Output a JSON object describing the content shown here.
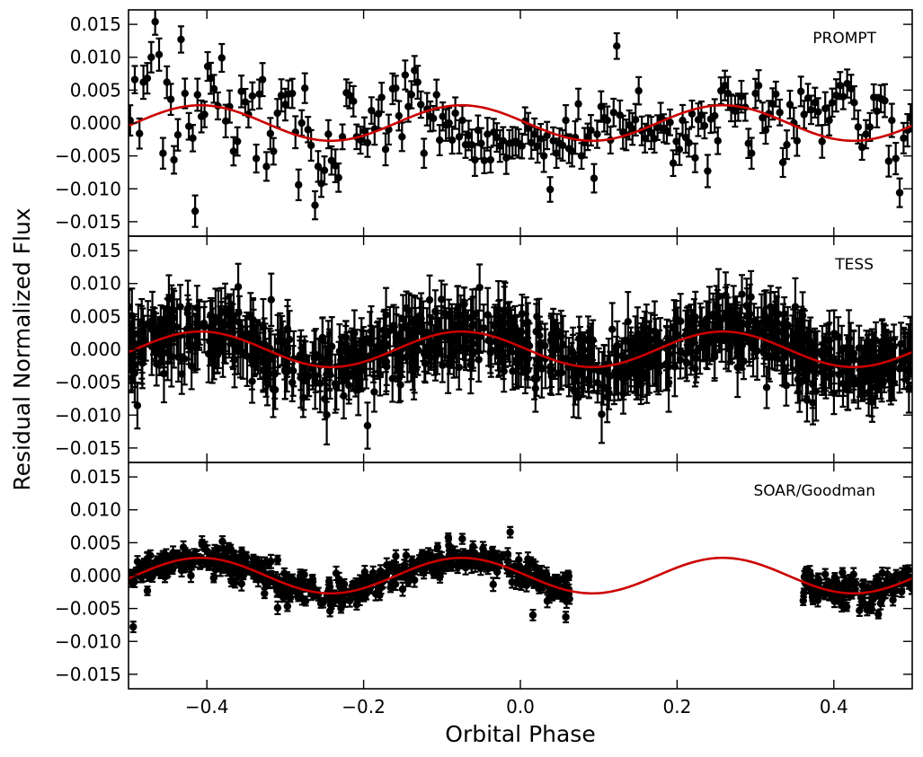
{
  "chart_data": {
    "type": "scatter",
    "ylabel": "Residual Normalized Flux",
    "xlabel": "Orbital Phase",
    "xlim": [
      -0.5,
      0.5
    ],
    "ylim": [
      -0.0172,
      0.0172
    ],
    "x_ticks": [
      -0.4,
      -0.2,
      0.0,
      0.2,
      0.4
    ],
    "x_tick_labels": [
      "−0.4",
      "−0.2",
      "0.0",
      "0.2",
      "0.4"
    ],
    "y_ticks": [
      -0.015,
      -0.01,
      -0.005,
      0.0,
      0.005,
      0.01,
      0.015
    ],
    "y_tick_labels": [
      "−0.015",
      "−0.010",
      "−0.005",
      "0.000",
      "0.005",
      "0.010",
      "0.015"
    ],
    "model": {
      "name": "sinusoid fit",
      "color": "#cc0000",
      "amplitude": 0.0027,
      "phase_of_maximum": -0.075,
      "cycles_per_unit_phase": 3
    },
    "marker_color": "#000000",
    "panels": [
      {
        "label": "PROMPT",
        "error_typical": 0.0022,
        "points": [
          [
            -0.498,
            0.0004
          ],
          [
            -0.492,
            0.0066
          ],
          [
            -0.486,
            -0.0016
          ],
          [
            -0.481,
            0.0062
          ],
          [
            -0.476,
            0.0068
          ],
          [
            -0.471,
            0.01
          ],
          [
            -0.466,
            0.0154
          ],
          [
            -0.461,
            0.0104
          ],
          [
            -0.456,
            -0.0046
          ],
          [
            -0.451,
            0.0062
          ],
          [
            -0.446,
            0.0036
          ],
          [
            -0.442,
            -0.0056
          ],
          [
            -0.437,
            -0.0018
          ],
          [
            -0.433,
            0.0127
          ],
          [
            -0.428,
            0.0045
          ],
          [
            -0.423,
            -0.0005
          ],
          [
            -0.418,
            -0.0023
          ],
          [
            -0.415,
            -0.0134
          ],
          [
            -0.412,
            0.0043
          ],
          [
            -0.407,
            0.001
          ],
          [
            -0.403,
            0.0013
          ],
          [
            -0.399,
            0.0086
          ],
          [
            -0.395,
            0.0068
          ],
          [
            -0.391,
            0.0052
          ],
          [
            -0.386,
            0.0026
          ],
          [
            -0.381,
            0.0099
          ],
          [
            -0.376,
            0.0003
          ],
          [
            -0.371,
            0.0025
          ],
          [
            -0.366,
            -0.0043
          ],
          [
            -0.361,
            -0.0028
          ],
          [
            -0.356,
            0.0048
          ],
          [
            -0.351,
            0.0032
          ],
          [
            -0.347,
            0.0013
          ],
          [
            -0.342,
            0.0041
          ],
          [
            -0.337,
            -0.0054
          ],
          [
            -0.333,
            0.0044
          ],
          [
            -0.329,
            0.0066
          ],
          [
            -0.324,
            -0.0066
          ],
          [
            -0.319,
            -0.0016
          ],
          [
            -0.315,
            -0.0043
          ],
          [
            -0.31,
            0.0015
          ],
          [
            -0.305,
            0.0042
          ],
          [
            -0.3,
            0.0028
          ],
          [
            -0.296,
            0.0044
          ],
          [
            -0.291,
            0.0045
          ],
          [
            -0.287,
            -0.0014
          ],
          [
            -0.283,
            -0.0094
          ],
          [
            -0.279,
            0.0
          ],
          [
            -0.275,
            0.0053
          ],
          [
            -0.271,
            -0.001
          ],
          [
            -0.267,
            -0.0034
          ],
          [
            -0.262,
            -0.0125
          ],
          [
            -0.258,
            -0.0066
          ],
          [
            -0.254,
            -0.0092
          ],
          [
            -0.25,
            -0.0072
          ],
          [
            -0.245,
            -0.0017
          ],
          [
            -0.241,
            -0.0057
          ],
          [
            -0.236,
            -0.0065
          ],
          [
            -0.232,
            -0.0083
          ],
          [
            -0.227,
            -0.0021
          ],
          [
            -0.222,
            0.0046
          ],
          [
            -0.218,
            0.0042
          ],
          [
            -0.213,
            0.0033
          ],
          [
            -0.209,
            -0.0021
          ],
          [
            -0.204,
            -0.0026
          ],
          [
            -0.199,
            -0.0012
          ],
          [
            -0.195,
            -0.003
          ],
          [
            -0.19,
            0.0019
          ],
          [
            -0.186,
            -0.0009
          ],
          [
            -0.181,
            0.0014
          ],
          [
            -0.177,
            0.0039
          ],
          [
            -0.172,
            -0.004
          ],
          [
            -0.168,
            -0.001
          ],
          [
            -0.163,
            0.0052
          ],
          [
            -0.159,
            0.0053
          ],
          [
            -0.155,
            0.0011
          ],
          [
            -0.151,
            -0.0021
          ],
          [
            -0.147,
            0.0073
          ],
          [
            -0.143,
            0.0025
          ],
          [
            -0.139,
            0.0043
          ],
          [
            -0.135,
            0.008
          ],
          [
            -0.131,
            0.0062
          ],
          [
            -0.127,
            0.0028
          ],
          [
            -0.123,
            -0.0046
          ],
          [
            -0.119,
            0.0021
          ],
          [
            -0.115,
            0.001
          ],
          [
            -0.111,
            0.0007
          ],
          [
            -0.107,
            0.0043
          ],
          [
            -0.103,
            -0.0026
          ],
          [
            -0.099,
            0.001
          ],
          [
            -0.095,
            -0.0003
          ],
          [
            -0.091,
            0.0
          ],
          [
            -0.087,
            -0.0026
          ],
          [
            -0.083,
            0.0015
          ],
          [
            -0.078,
            -0.0021
          ],
          [
            -0.074,
            0.0004
          ],
          [
            -0.07,
            -0.0033
          ],
          [
            -0.066,
            -0.0019
          ],
          [
            -0.062,
            -0.0033
          ],
          [
            -0.058,
            -0.0056
          ],
          [
            -0.054,
            -0.0011
          ],
          [
            -0.05,
            -0.0031
          ],
          [
            -0.046,
            -0.0057
          ],
          [
            -0.042,
            -0.0017
          ],
          [
            -0.038,
            -0.0056
          ],
          [
            -0.034,
            -0.0014
          ],
          [
            -0.03,
            -0.0022
          ],
          [
            -0.026,
            -0.0035
          ],
          [
            -0.022,
            -0.0027
          ],
          [
            -0.018,
            -0.0053
          ],
          [
            -0.014,
            -0.0031
          ],
          [
            -0.01,
            -0.003
          ],
          [
            -0.006,
            -0.0028
          ],
          [
            -0.002,
            -0.0031
          ],
          [
            0.002,
            -0.0035
          ],
          [
            0.006,
            0.0003
          ],
          [
            0.01,
            -0.0008
          ],
          [
            0.014,
            -0.003
          ],
          [
            0.018,
            -0.0017
          ],
          [
            0.022,
            -0.0035
          ],
          [
            0.026,
            -0.0024
          ],
          [
            0.03,
            -0.005
          ],
          [
            0.034,
            -0.0019
          ],
          [
            0.038,
            -0.0101
          ],
          [
            0.042,
            -0.0027
          ],
          [
            0.046,
            -0.0046
          ],
          [
            0.05,
            -0.0031
          ],
          [
            0.054,
            -0.0034
          ],
          [
            0.058,
            0.0004
          ],
          [
            0.062,
            -0.0039
          ],
          [
            0.066,
            -0.0043
          ],
          [
            0.07,
            -0.0022
          ],
          [
            0.074,
            0.0029
          ],
          [
            0.078,
            -0.005
          ],
          [
            0.082,
            -0.003
          ],
          [
            0.086,
            -0.0021
          ],
          [
            0.09,
            -0.0011
          ],
          [
            0.094,
            -0.0084
          ],
          [
            0.098,
            -0.0017
          ],
          [
            0.103,
            0.0025
          ],
          [
            0.107,
            0.0008
          ],
          [
            0.111,
            0.0004
          ],
          [
            0.115,
            -0.0026
          ],
          [
            0.119,
            0.0016
          ],
          [
            0.123,
            0.0117
          ],
          [
            0.127,
            0.0012
          ],
          [
            0.131,
            -0.0014
          ],
          [
            0.135,
            -0.0018
          ],
          [
            0.139,
            -0.0003
          ],
          [
            0.143,
            -0.0009
          ],
          [
            0.147,
            0.0005
          ],
          [
            0.151,
            0.0049
          ],
          [
            0.155,
            -0.0012
          ],
          [
            0.159,
            -0.0023
          ],
          [
            0.163,
            -0.0008
          ],
          [
            0.167,
            -0.0015
          ],
          [
            0.171,
            -0.0024
          ],
          [
            0.175,
            -0.0007
          ],
          [
            0.179,
            0.0008
          ],
          [
            0.183,
            -0.0008
          ],
          [
            0.187,
            -0.0012
          ],
          [
            0.191,
            0.0001
          ],
          [
            0.195,
            -0.0061
          ],
          [
            0.199,
            -0.0028
          ],
          [
            0.203,
            -0.004
          ],
          [
            0.207,
            0.0004
          ],
          [
            0.211,
            -0.0022
          ],
          [
            0.215,
            -0.003
          ],
          [
            0.219,
            0.0014
          ],
          [
            0.223,
            -0.0053
          ],
          [
            0.227,
            0.0005
          ],
          [
            0.231,
            0.0012
          ],
          [
            0.235,
            -0.0004
          ],
          [
            0.239,
            -0.0073
          ],
          [
            0.243,
            0.0006
          ],
          [
            0.248,
            0.0011
          ],
          [
            0.252,
            -0.0027
          ],
          [
            0.256,
            0.0049
          ],
          [
            0.261,
            0.0057
          ],
          [
            0.265,
            0.0045
          ],
          [
            0.269,
            0.0023
          ],
          [
            0.274,
            0.0018
          ],
          [
            0.278,
            0.0024
          ],
          [
            0.282,
            0.004
          ],
          [
            0.287,
            0.0024
          ],
          [
            0.291,
            -0.0031
          ],
          [
            0.295,
            -0.0046
          ],
          [
            0.3,
            0.0045
          ],
          [
            0.304,
            0.0057
          ],
          [
            0.309,
            0.0008
          ],
          [
            0.313,
            -0.0011
          ],
          [
            0.317,
            0.0014
          ],
          [
            0.322,
            0.0029
          ],
          [
            0.326,
            0.0044
          ],
          [
            0.331,
            0.0016
          ],
          [
            0.335,
            -0.006
          ],
          [
            0.34,
            -0.0033
          ],
          [
            0.344,
            0.0028
          ],
          [
            0.349,
            0.0
          ],
          [
            0.353,
            -0.0027
          ],
          [
            0.358,
            0.0048
          ],
          [
            0.362,
            0.0013
          ],
          [
            0.367,
            0.0038
          ],
          [
            0.371,
            0.002
          ],
          [
            0.376,
            0.0031
          ],
          [
            0.38,
            0.0017
          ],
          [
            0.385,
            -0.0028
          ],
          [
            0.389,
            0.0022
          ],
          [
            0.394,
            0.0004
          ],
          [
            0.398,
            0.0031
          ],
          [
            0.403,
            0.0042
          ],
          [
            0.408,
            0.0057
          ],
          [
            0.412,
            0.004
          ],
          [
            0.417,
            0.006
          ],
          [
            0.422,
            0.0052
          ],
          [
            0.426,
            0.0031
          ],
          [
            0.431,
            -0.0006
          ],
          [
            0.436,
            -0.0037
          ],
          [
            0.441,
            -0.0017
          ],
          [
            0.446,
            -0.0006
          ],
          [
            0.451,
            0.0039
          ],
          [
            0.455,
            0.0018
          ],
          [
            0.46,
            0.0037
          ],
          [
            0.465,
            0.0034
          ],
          [
            0.47,
            -0.0058
          ],
          [
            0.474,
            0.0004
          ],
          [
            0.479,
            -0.0054
          ],
          [
            0.484,
            -0.0106
          ],
          [
            0.489,
            -0.0023
          ],
          [
            0.494,
            -0.0011
          ],
          [
            0.498,
            0.0008
          ]
        ]
      },
      {
        "label": "TESS",
        "dense": true,
        "coverage": [
          [
            -0.5,
            0.5
          ]
        ],
        "scatter_sd": 0.0025,
        "error_typical": 0.0035,
        "point_count": 900,
        "extremes": [
          [
            -0.195,
            -0.0116
          ],
          [
            -0.052,
            0.0094
          ],
          [
            0.262,
            0.0082
          ],
          [
            -0.36,
            0.0095
          ]
        ]
      },
      {
        "label": "SOAR/Goodman",
        "dense": true,
        "coverage": [
          [
            -0.5,
            0.063
          ],
          [
            0.36,
            0.5
          ]
        ],
        "scatter_sd": 0.0011,
        "error_typical": 0.0008,
        "point_count": 700,
        "extremes": [
          [
            -0.494,
            -0.0078
          ],
          [
            -0.013,
            0.0066
          ],
          [
            0.016,
            -0.006
          ],
          [
            0.058,
            -0.0063
          ]
        ]
      }
    ]
  }
}
